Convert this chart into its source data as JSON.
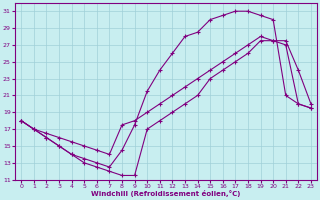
{
  "xlabel": "Windchill (Refroidissement éolien,°C)",
  "bg_color": "#c8eef0",
  "grid_color": "#a0d0d8",
  "line_color": "#800080",
  "xlim": [
    -0.5,
    23.5
  ],
  "ylim": [
    11,
    32
  ],
  "xticks": [
    0,
    1,
    2,
    3,
    4,
    5,
    6,
    7,
    8,
    9,
    10,
    11,
    12,
    13,
    14,
    15,
    16,
    17,
    18,
    19,
    20,
    21,
    22,
    23
  ],
  "yticks": [
    11,
    13,
    15,
    17,
    19,
    21,
    23,
    25,
    27,
    29,
    31
  ],
  "line1_x": [
    0,
    1,
    2,
    3,
    4,
    5,
    6,
    7,
    8,
    9,
    10,
    11,
    12,
    13,
    14,
    15,
    16,
    17,
    18,
    19,
    20,
    21,
    22,
    23
  ],
  "line1_y": [
    18,
    17,
    16.5,
    16,
    15.5,
    15,
    14.5,
    14,
    17.5,
    18,
    19,
    20,
    21,
    22,
    23,
    24,
    25,
    26,
    27,
    28,
    27.5,
    27,
    20,
    19.5
  ],
  "line2_x": [
    0,
    1,
    2,
    3,
    4,
    5,
    6,
    7,
    8,
    9,
    10,
    11,
    12,
    13,
    14,
    15,
    16,
    17,
    18,
    19,
    20,
    21,
    22,
    23
  ],
  "line2_y": [
    18,
    17,
    16,
    15,
    14,
    13.5,
    13,
    12.5,
    14.5,
    17.5,
    21.5,
    24,
    26,
    28,
    28.5,
    30,
    30.5,
    31,
    31,
    30.5,
    30,
    21,
    20,
    19.5
  ],
  "line3_x": [
    0,
    1,
    2,
    3,
    4,
    5,
    6,
    7,
    8,
    9,
    10,
    11,
    12,
    13,
    14,
    15,
    16,
    17,
    18,
    19,
    20,
    21,
    22,
    23
  ],
  "line3_y": [
    18,
    17,
    16,
    15,
    14,
    13,
    12.5,
    12,
    11.5,
    11.5,
    17,
    18,
    19,
    20,
    21,
    23,
    24,
    25,
    26,
    27.5,
    27.5,
    27.5,
    24,
    20
  ]
}
